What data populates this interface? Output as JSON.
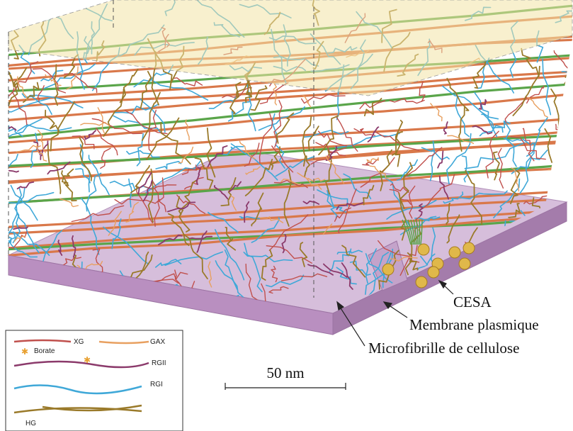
{
  "annotations": {
    "cesa": "CESA",
    "membrane": "Membrane plasmique",
    "microfibril": "Microfibrille de cellulose"
  },
  "scale_bar": {
    "label": "50 nm"
  },
  "legend": {
    "xg": "XG",
    "gax": "GAX",
    "borate": "Borate",
    "rgii": "RGII",
    "rgi": "RGI",
    "hg": "HG"
  },
  "colors": {
    "cellulose": "#d9784a",
    "cellulose_green": "#5aa54a",
    "xg": "#c0504d",
    "gax": "#e8a060",
    "rgi": "#3fa8d8",
    "hg": "#9a7a2a",
    "rgii": "#8b3a6b",
    "membrane": "#c9a8cf",
    "top_plane": "#f5e9b8",
    "cesa": "#e0b84a"
  }
}
